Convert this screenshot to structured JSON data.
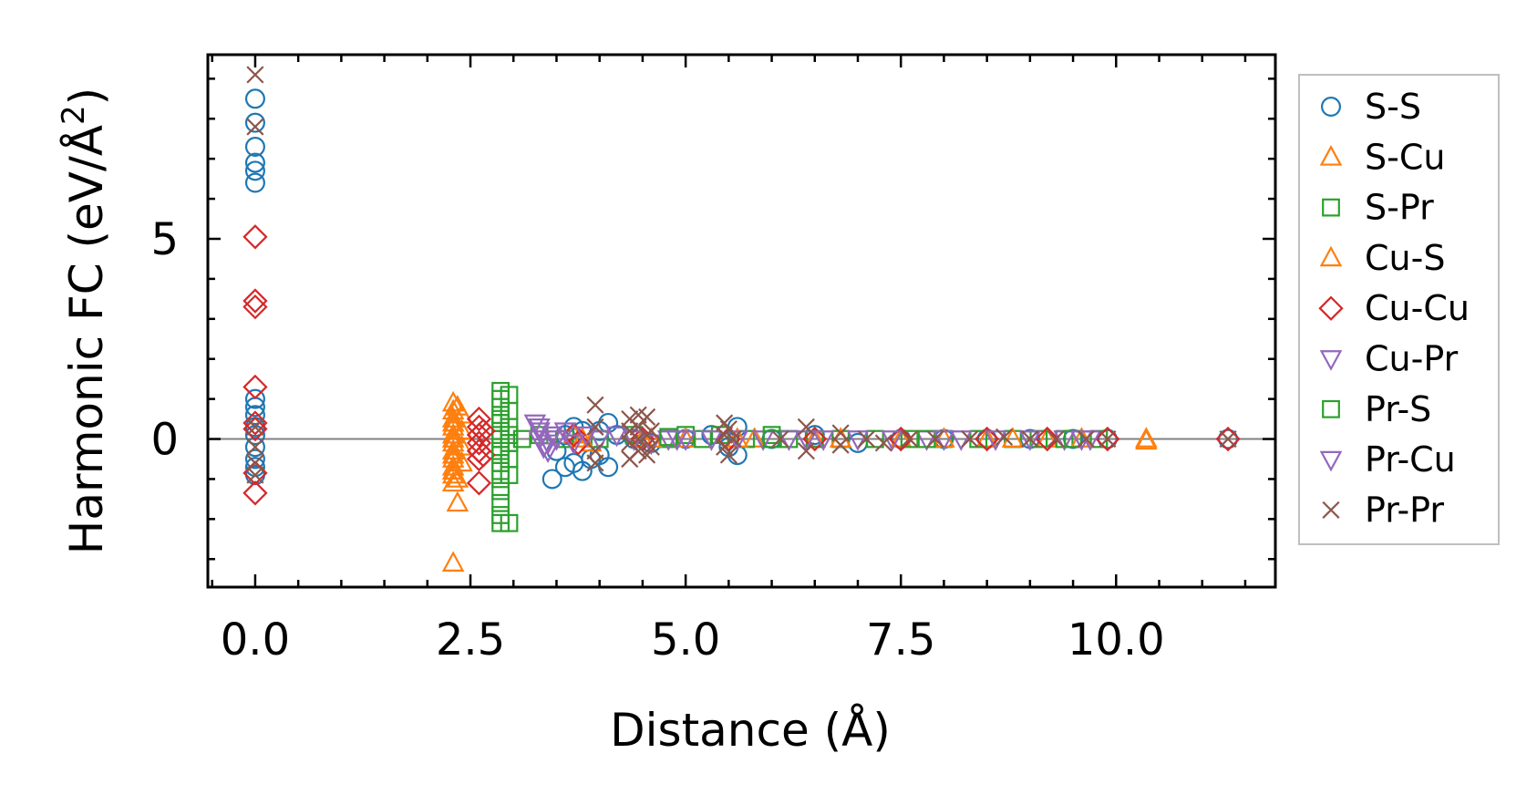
{
  "chart_data": {
    "type": "scatter",
    "xlabel": "Distance (Å)",
    "ylabel": "Harmonic FC (eV/Å²)",
    "ylabel_base": "Harmonic FC (eV/Å",
    "ylabel_sup": "2",
    "ylabel_end": ")",
    "xlim": [
      -0.55,
      11.85
    ],
    "ylim": [
      -3.7,
      9.6
    ],
    "xticks": [
      0.0,
      2.5,
      5.0,
      7.5,
      10.0
    ],
    "xtick_labels": [
      "0.0",
      "2.5",
      "5.0",
      "7.5",
      "10.0"
    ],
    "yticks": [
      0,
      5
    ],
    "ytick_labels": [
      "0",
      "5"
    ],
    "zero_line": true,
    "legend_position": "outside-right",
    "series": [
      {
        "name": "S-S",
        "marker": "circle",
        "color": "#1f77b4",
        "points": [
          [
            0,
            8.5
          ],
          [
            0,
            7.9
          ],
          [
            0,
            7.3
          ],
          [
            0,
            6.9
          ],
          [
            0,
            6.7
          ],
          [
            0,
            6.4
          ],
          [
            0,
            1.0
          ],
          [
            0,
            0.8
          ],
          [
            0,
            0.6
          ],
          [
            0,
            0.3
          ],
          [
            0,
            0.1
          ],
          [
            0,
            -0.2
          ],
          [
            0,
            -0.5
          ],
          [
            0,
            -0.7
          ],
          [
            0,
            -0.9
          ],
          [
            3.45,
            -1.0
          ],
          [
            3.6,
            -0.7
          ],
          [
            3.7,
            -0.6
          ],
          [
            3.8,
            -0.8
          ],
          [
            3.9,
            -0.5
          ],
          [
            4.0,
            -0.4
          ],
          [
            4.1,
            -0.7
          ],
          [
            3.5,
            -0.3
          ],
          [
            3.6,
            0.1
          ],
          [
            3.7,
            0.3
          ],
          [
            3.8,
            0.2
          ],
          [
            4.0,
            0.2
          ],
          [
            4.1,
            0.4
          ],
          [
            4.2,
            0.1
          ],
          [
            4.4,
            0.0
          ],
          [
            4.6,
            -0.1
          ],
          [
            5.0,
            0.0
          ],
          [
            5.3,
            0.1
          ],
          [
            5.5,
            -0.2
          ],
          [
            5.6,
            -0.4
          ],
          [
            5.6,
            0.3
          ],
          [
            6.0,
            0.0
          ],
          [
            6.5,
            0.1
          ],
          [
            7.0,
            -0.1
          ],
          [
            7.5,
            0.0
          ],
          [
            8.0,
            0.0
          ],
          [
            8.5,
            0.0
          ],
          [
            9.0,
            0.0
          ],
          [
            9.5,
            0.0
          ],
          [
            9.9,
            0.0
          ],
          [
            11.3,
            0.0
          ]
        ]
      },
      {
        "name": "S-Cu",
        "marker": "triangle-up",
        "color": "#ff7f0e",
        "points": [
          [
            2.3,
            0.9
          ],
          [
            2.3,
            0.7
          ],
          [
            2.3,
            0.5
          ],
          [
            2.3,
            0.3
          ],
          [
            2.3,
            0.1
          ],
          [
            2.3,
            -0.1
          ],
          [
            2.3,
            -0.3
          ],
          [
            2.3,
            -0.5
          ],
          [
            2.3,
            -0.7
          ],
          [
            2.3,
            -0.9
          ],
          [
            2.3,
            -1.1
          ],
          [
            2.35,
            -1.6
          ],
          [
            2.3,
            -3.1
          ],
          [
            2.4,
            0.6
          ],
          [
            2.4,
            0.2
          ],
          [
            2.4,
            -0.2
          ],
          [
            2.4,
            -0.6
          ],
          [
            3.7,
            0.1
          ],
          [
            3.9,
            -0.1
          ],
          [
            4.5,
            0.0
          ],
          [
            5.0,
            0.0
          ],
          [
            5.8,
            0.0
          ],
          [
            6.5,
            0.0
          ],
          [
            7.5,
            0.0
          ],
          [
            8.5,
            0.0
          ],
          [
            9.2,
            0.0
          ],
          [
            10.35,
            -0.05
          ]
        ]
      },
      {
        "name": "S-Pr",
        "marker": "square",
        "color": "#2ca02c",
        "points": [
          [
            2.85,
            1.2
          ],
          [
            2.85,
            1.0
          ],
          [
            2.85,
            0.8
          ],
          [
            2.85,
            0.6
          ],
          [
            2.85,
            0.4
          ],
          [
            2.85,
            0.2
          ],
          [
            2.85,
            0.0
          ],
          [
            2.85,
            -0.2
          ],
          [
            2.85,
            -0.4
          ],
          [
            2.85,
            -0.6
          ],
          [
            2.85,
            -0.8
          ],
          [
            2.85,
            -1.0
          ],
          [
            2.85,
            -1.3
          ],
          [
            2.85,
            -1.6
          ],
          [
            2.85,
            -1.9
          ],
          [
            2.85,
            -2.1
          ],
          [
            2.95,
            1.1
          ],
          [
            2.95,
            0.7
          ],
          [
            2.95,
            0.3
          ],
          [
            2.95,
            -0.1
          ],
          [
            2.95,
            -0.5
          ],
          [
            2.95,
            -0.9
          ],
          [
            2.95,
            -2.1
          ],
          [
            3.1,
            0.0
          ],
          [
            3.3,
            0.1
          ],
          [
            3.6,
            0.0
          ],
          [
            4.0,
            0.0
          ],
          [
            4.4,
            0.1
          ],
          [
            4.8,
            0.0
          ],
          [
            5.0,
            0.1
          ],
          [
            5.2,
            0.0
          ],
          [
            5.4,
            0.1
          ],
          [
            5.7,
            0.0
          ],
          [
            6.0,
            0.1
          ],
          [
            6.2,
            0.0
          ],
          [
            6.5,
            0.0
          ],
          [
            6.8,
            0.0
          ],
          [
            7.2,
            0.0
          ],
          [
            7.6,
            0.0
          ],
          [
            8.0,
            0.0
          ],
          [
            8.4,
            0.0
          ],
          [
            8.8,
            0.0
          ],
          [
            9.1,
            0.0
          ],
          [
            9.4,
            0.0
          ],
          [
            9.8,
            0.0
          ]
        ]
      },
      {
        "name": "Cu-S",
        "marker": "triangle-up",
        "color": "#ff7f0e",
        "points": [
          [
            2.3,
            0.4
          ],
          [
            2.3,
            0.0
          ],
          [
            2.3,
            -0.4
          ],
          [
            2.3,
            -0.8
          ],
          [
            2.35,
            0.8
          ],
          [
            2.35,
            -1.0
          ],
          [
            3.8,
            0.0
          ],
          [
            4.6,
            0.0
          ],
          [
            5.6,
            0.0
          ],
          [
            6.8,
            0.0
          ],
          [
            8.0,
            0.0
          ],
          [
            8.8,
            0.0
          ],
          [
            9.6,
            0.0
          ],
          [
            10.35,
            0.0
          ]
        ]
      },
      {
        "name": "Cu-Cu",
        "marker": "diamond",
        "color": "#d62728",
        "points": [
          [
            0,
            5.05
          ],
          [
            0,
            3.45
          ],
          [
            0,
            3.3
          ],
          [
            0,
            1.3
          ],
          [
            0,
            0.4
          ],
          [
            0,
            0.25
          ],
          [
            0,
            -0.85
          ],
          [
            0,
            -1.35
          ],
          [
            2.6,
            0.5
          ],
          [
            2.6,
            0.3
          ],
          [
            2.6,
            0.1
          ],
          [
            2.6,
            -0.1
          ],
          [
            2.6,
            -0.3
          ],
          [
            2.6,
            -0.5
          ],
          [
            2.6,
            -1.1
          ],
          [
            2.65,
            0.2
          ],
          [
            2.65,
            -0.4
          ],
          [
            3.7,
            0.1
          ],
          [
            3.75,
            -0.1
          ],
          [
            4.5,
            0.0
          ],
          [
            5.5,
            0.0
          ],
          [
            6.5,
            0.0
          ],
          [
            7.5,
            0.0
          ],
          [
            8.5,
            0.0
          ],
          [
            9.2,
            0.0
          ],
          [
            9.9,
            0.0
          ],
          [
            11.3,
            0.0
          ]
        ]
      },
      {
        "name": "Cu-Pr",
        "marker": "triangle-down",
        "color": "#9467bd",
        "points": [
          [
            3.25,
            0.4
          ],
          [
            3.3,
            0.2
          ],
          [
            3.3,
            0.0
          ],
          [
            3.35,
            -0.2
          ],
          [
            3.4,
            -0.3
          ],
          [
            3.45,
            0.1
          ],
          [
            3.5,
            0.0
          ],
          [
            3.6,
            0.2
          ],
          [
            3.7,
            -0.1
          ],
          [
            3.85,
            0.1
          ],
          [
            4.0,
            0.0
          ],
          [
            4.2,
            0.1
          ],
          [
            4.4,
            0.0
          ],
          [
            4.6,
            -0.1
          ],
          [
            4.8,
            0.0
          ],
          [
            5.0,
            0.0
          ],
          [
            5.3,
            0.0
          ],
          [
            5.6,
            0.0
          ],
          [
            5.9,
            0.0
          ],
          [
            6.2,
            0.0
          ],
          [
            6.6,
            0.0
          ],
          [
            7.0,
            0.0
          ],
          [
            7.4,
            0.0
          ],
          [
            7.8,
            0.0
          ],
          [
            8.2,
            0.0
          ],
          [
            8.6,
            0.0
          ],
          [
            9.0,
            0.0
          ],
          [
            9.4,
            0.0
          ],
          [
            9.7,
            0.0
          ]
        ]
      },
      {
        "name": "Pr-S",
        "marker": "square",
        "color": "#2ca02c",
        "points": [
          [
            2.85,
            0.5
          ],
          [
            2.85,
            -0.3
          ],
          [
            2.95,
            0.1
          ],
          [
            4.8,
            0.05
          ],
          [
            6.0,
            0.0
          ],
          [
            7.8,
            0.0
          ],
          [
            9.5,
            0.0
          ]
        ]
      },
      {
        "name": "Pr-Cu",
        "marker": "triangle-down",
        "color": "#9467bd",
        "points": [
          [
            3.3,
            0.3
          ],
          [
            3.4,
            -0.1
          ],
          [
            4.9,
            0.0
          ],
          [
            6.4,
            0.0
          ],
          [
            8.0,
            0.0
          ],
          [
            9.6,
            0.0
          ]
        ]
      },
      {
        "name": "Pr-Pr",
        "marker": "x",
        "color": "#8c564b",
        "points": [
          [
            0,
            9.1
          ],
          [
            0,
            7.8
          ],
          [
            0,
            0.3
          ],
          [
            0,
            -0.2
          ],
          [
            0,
            -0.6
          ],
          [
            0,
            -0.9
          ],
          [
            3.95,
            0.85
          ],
          [
            3.95,
            0.3
          ],
          [
            3.95,
            -0.3
          ],
          [
            3.95,
            -0.6
          ],
          [
            4.35,
            0.5
          ],
          [
            4.35,
            0.2
          ],
          [
            4.35,
            -0.1
          ],
          [
            4.35,
            -0.5
          ],
          [
            4.45,
            0.6
          ],
          [
            4.45,
            0.3
          ],
          [
            4.45,
            0.0
          ],
          [
            4.45,
            -0.3
          ],
          [
            4.55,
            0.55
          ],
          [
            4.55,
            0.1
          ],
          [
            4.55,
            -0.4
          ],
          [
            4.6,
            0.2
          ],
          [
            4.6,
            -0.2
          ],
          [
            5.45,
            0.4
          ],
          [
            5.45,
            0.1
          ],
          [
            5.45,
            -0.2
          ],
          [
            5.5,
            0.25
          ],
          [
            5.5,
            -0.4
          ],
          [
            5.55,
            0.0
          ],
          [
            6.1,
            0.0
          ],
          [
            6.4,
            0.3
          ],
          [
            6.4,
            -0.3
          ],
          [
            6.8,
            0.15
          ],
          [
            6.8,
            -0.15
          ],
          [
            7.1,
            0.0
          ],
          [
            7.3,
            -0.1
          ],
          [
            7.6,
            0.0
          ],
          [
            7.9,
            0.0
          ],
          [
            8.3,
            0.0
          ],
          [
            8.7,
            0.05
          ],
          [
            9.0,
            0.0
          ],
          [
            9.3,
            0.0
          ],
          [
            9.65,
            0.0
          ],
          [
            9.9,
            0.0
          ],
          [
            11.3,
            0.0
          ]
        ]
      }
    ]
  }
}
